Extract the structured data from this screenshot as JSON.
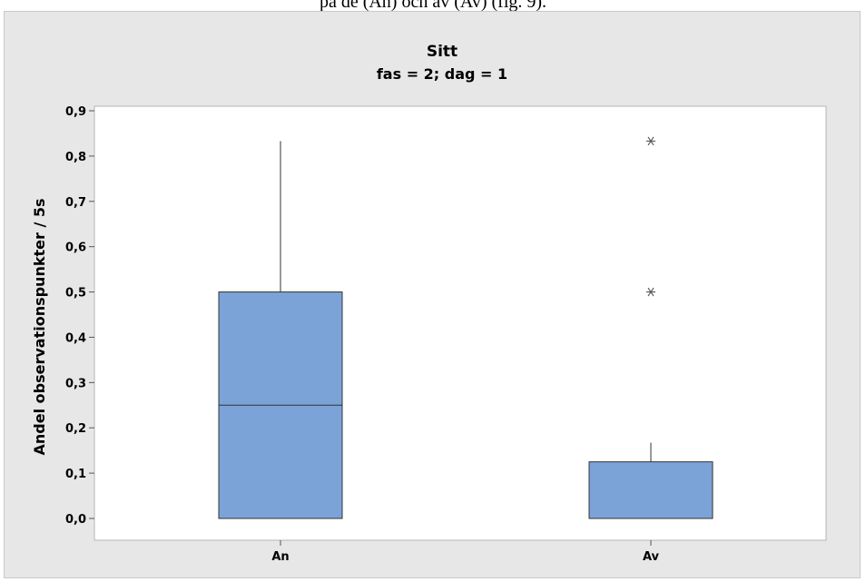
{
  "header_text": "på de (An) och av (Av) (fig. 9).",
  "chart_data": {
    "type": "boxplot",
    "title": "Sitt",
    "subtitle": "fas = 2; dag = 1",
    "xlabel": "",
    "ylabel": "Andel observationspunkter / 5s",
    "categories": [
      "An",
      "Av"
    ],
    "ylim": [
      -0.05,
      0.92
    ],
    "yticks": [
      0.0,
      0.1,
      0.2,
      0.3,
      0.4,
      0.5,
      0.6,
      0.7,
      0.8,
      0.9
    ],
    "ytick_labels": [
      "0,0",
      "0,1",
      "0,2",
      "0,3",
      "0,4",
      "0,5",
      "0,6",
      "0,7",
      "0,8",
      "0,9"
    ],
    "boxes": [
      {
        "category": "An",
        "min": 0.0,
        "q1": 0.0,
        "median": 0.25,
        "q3": 0.5,
        "max": 0.833,
        "outliers": []
      },
      {
        "category": "Av",
        "min": 0.0,
        "q1": 0.0,
        "median": 0.0,
        "q3": 0.125,
        "max": 0.167,
        "outliers": [
          0.5,
          0.833
        ]
      }
    ],
    "box_color": "#7ba3d8",
    "grid": false
  }
}
